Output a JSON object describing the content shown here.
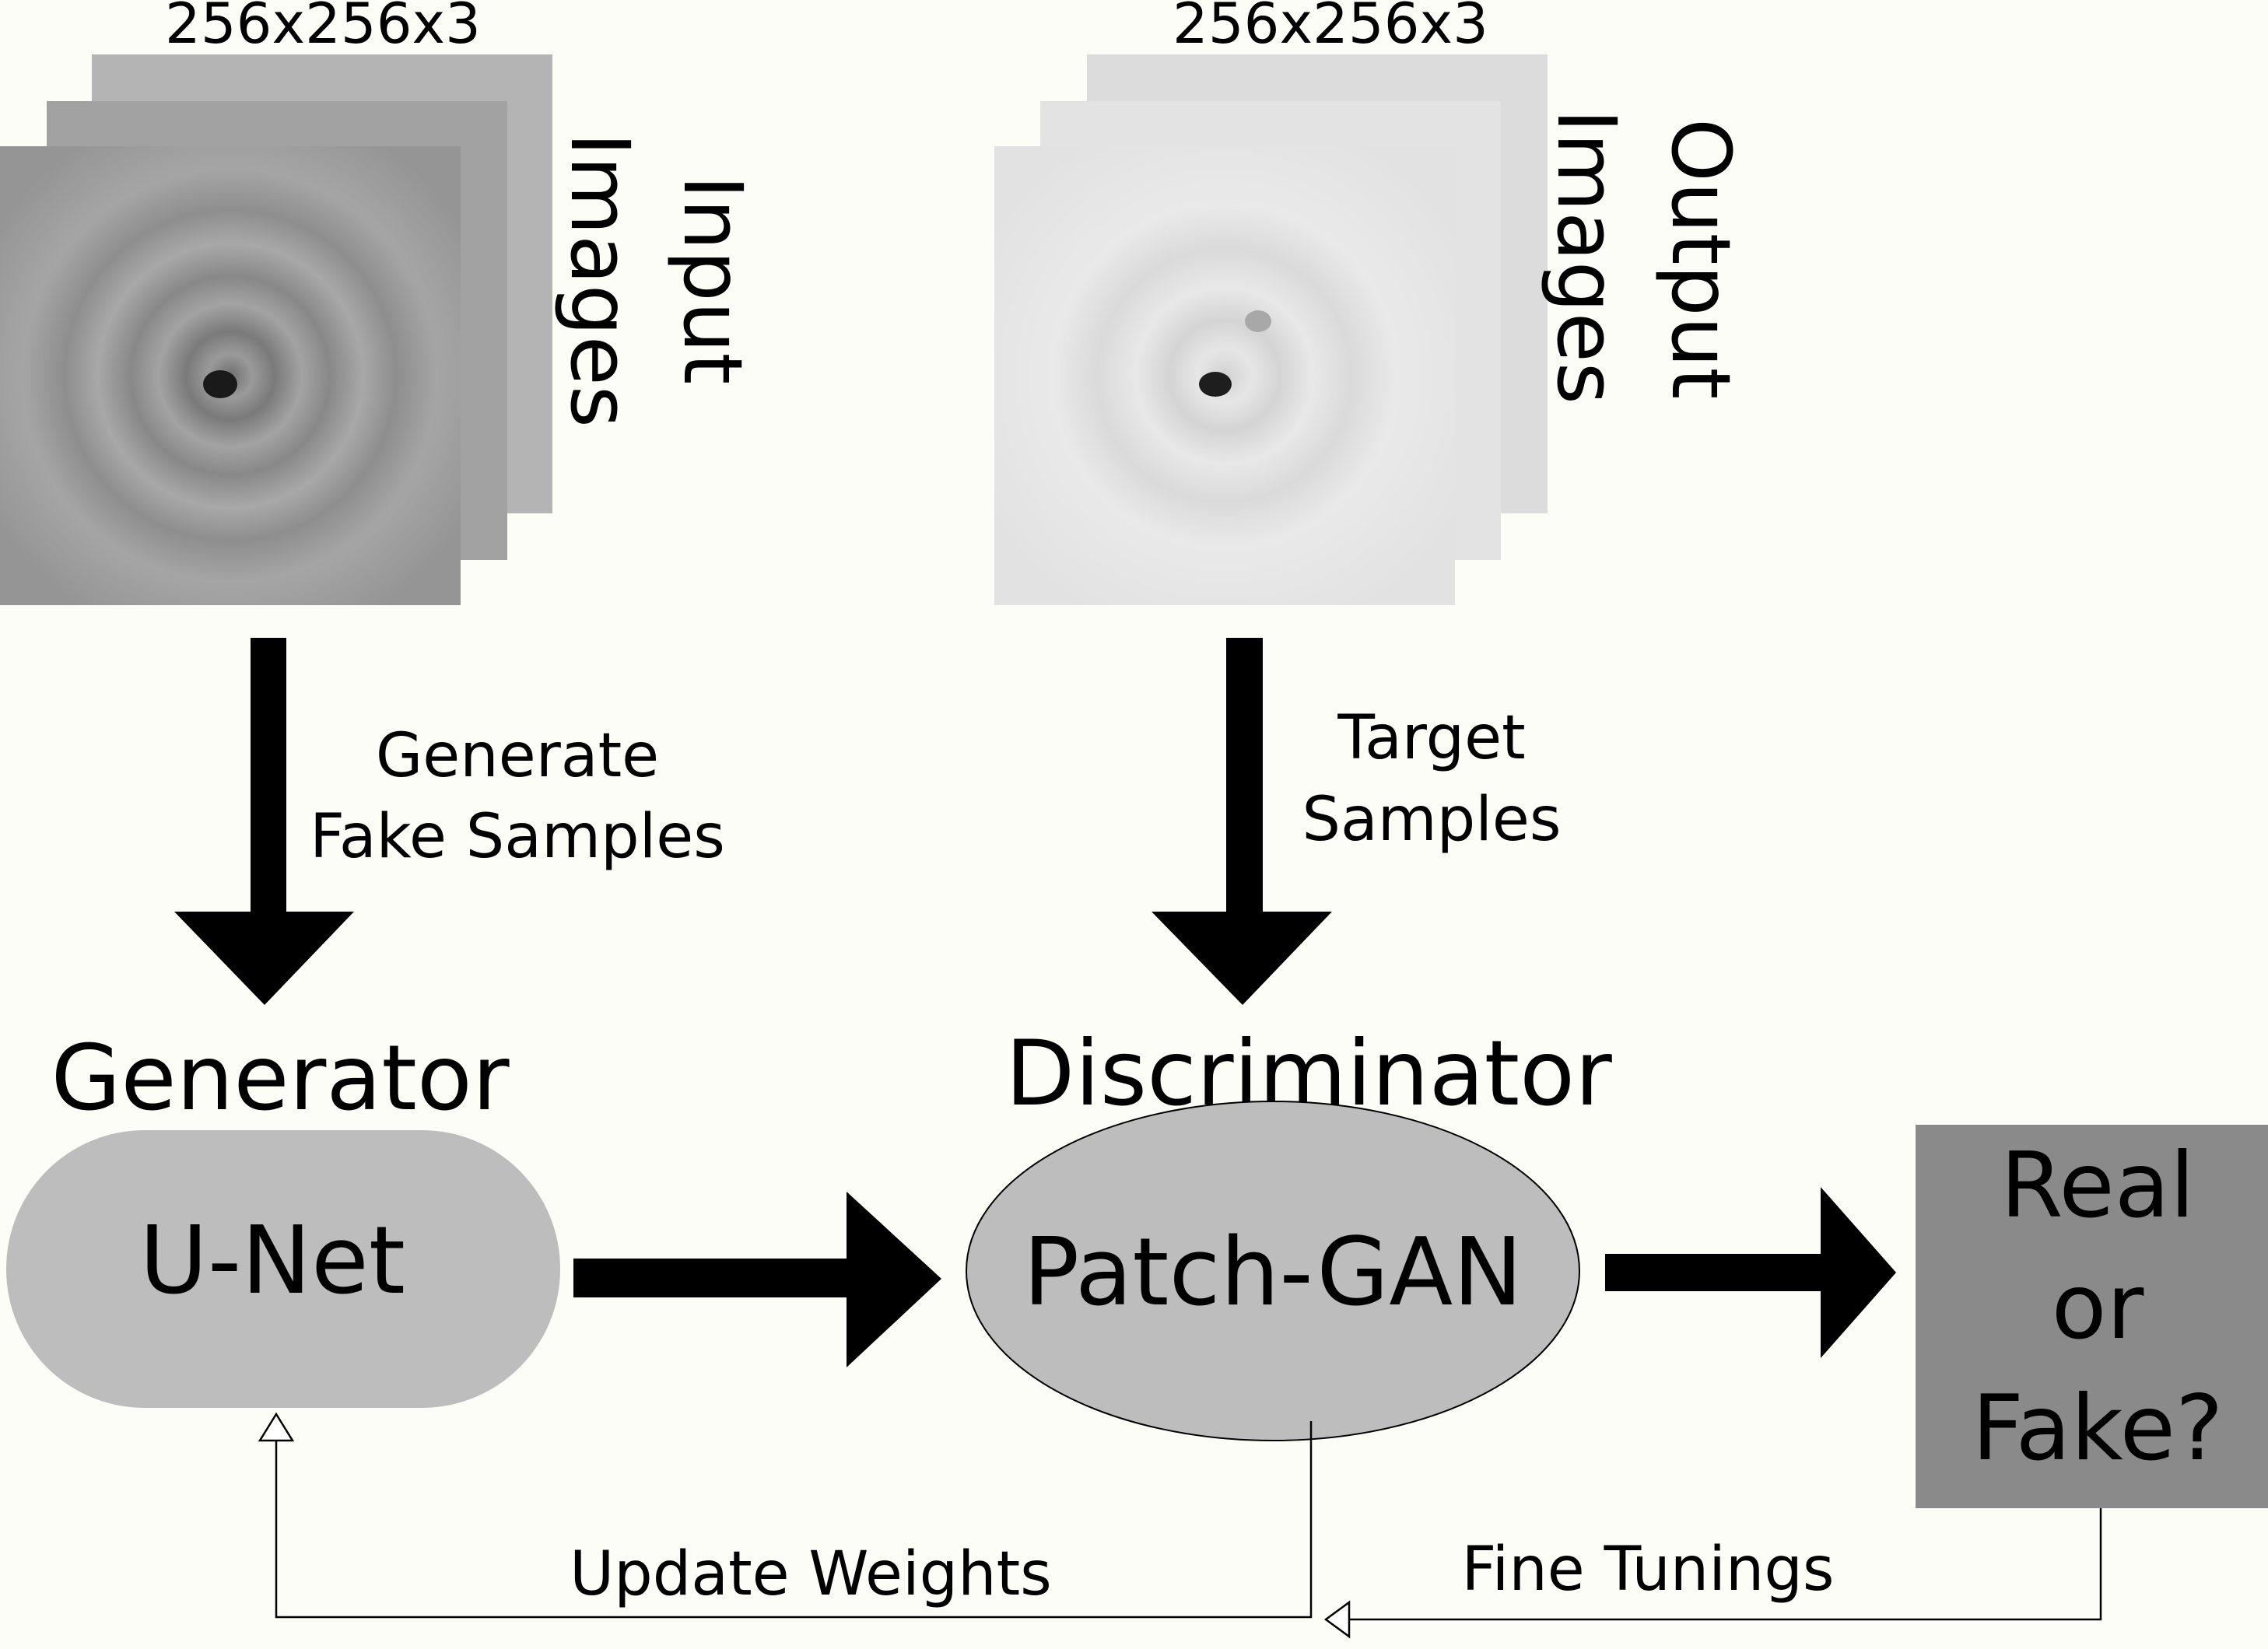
{
  "input_group": {
    "size_label": "256x256x3",
    "title_line1": "Input",
    "title_line2": "Images"
  },
  "output_group": {
    "size_label": "256x256x3",
    "title_line1": "Output",
    "title_line2": "Images"
  },
  "arrows": {
    "generate_line1": "Generate",
    "generate_line2": "Fake Samples",
    "target_line1": "Target",
    "target_line2": "Samples"
  },
  "generator": {
    "heading": "Generator",
    "label": "U-Net"
  },
  "discriminator": {
    "heading": "Discriminator",
    "label": "Patch-GAN"
  },
  "verdict": {
    "line1": "Real",
    "line2": "or",
    "line3": "Fake?"
  },
  "feedback": {
    "update_label": "Update Weights",
    "fine_label": "Fine Tunings"
  },
  "colors": {
    "background": "#fdfdf8",
    "node_fill": "#bdbdbd",
    "verdict_fill": "#8a8a8a",
    "arrow": "#000000"
  }
}
